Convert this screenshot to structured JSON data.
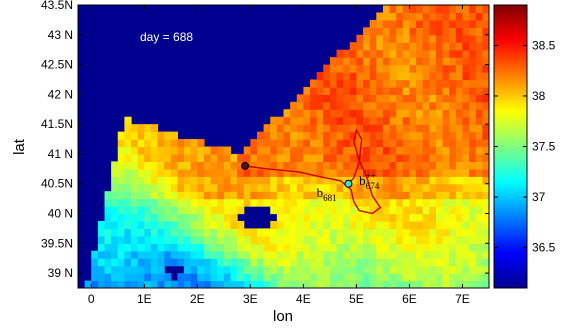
{
  "chart_data": {
    "type": "heatmap",
    "xlabel": "lon",
    "ylabel": "lat",
    "x_ticks": [
      "0",
      "1E",
      "2E",
      "3E",
      "4E",
      "5E",
      "6E",
      "7E"
    ],
    "y_ticks": [
      "39 N",
      "39.5N",
      "40 N",
      "40.5N",
      "41 N",
      "41.5N",
      "42 N",
      "42.5N",
      "43 N",
      "43.5N"
    ],
    "xlim": [
      -0.25,
      7.5
    ],
    "ylim": [
      38.75,
      43.5
    ],
    "colorbar": {
      "range": [
        36.1,
        38.9
      ],
      "ticks": [
        "36.5",
        "37",
        "37.5",
        "38",
        "38.5"
      ],
      "colormap": "jet"
    },
    "annotation": "day = 688",
    "trajectory": {
      "color": "#cc0000",
      "start": [
        2.9,
        40.8
      ],
      "end": [
        4.85,
        40.5
      ],
      "points": [
        [
          2.9,
          40.8
        ],
        [
          3.3,
          40.75
        ],
        [
          3.9,
          40.7
        ],
        [
          4.3,
          40.62
        ],
        [
          4.7,
          40.55
        ],
        [
          4.9,
          40.4
        ],
        [
          4.95,
          40.2
        ],
        [
          5.05,
          40.05
        ],
        [
          5.3,
          40.0
        ],
        [
          5.45,
          40.1
        ],
        [
          5.3,
          40.3
        ],
        [
          5.2,
          40.6
        ],
        [
          5.05,
          40.9
        ],
        [
          4.95,
          41.2
        ],
        [
          5.0,
          41.4
        ],
        [
          5.1,
          41.25
        ],
        [
          5.05,
          40.85
        ],
        [
          4.95,
          40.6
        ],
        [
          4.85,
          40.5
        ]
      ]
    },
    "labels": [
      {
        "base": "b",
        "sub": "681",
        "sup": "",
        "x": 4.25,
        "y": 40.28
      },
      {
        "base": "b",
        "sub": "674",
        "sup": "++",
        "x": 5.05,
        "y": 40.48
      }
    ]
  }
}
